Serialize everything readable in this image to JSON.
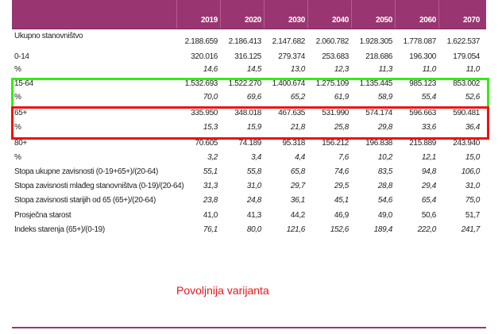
{
  "years": [
    "2019",
    "2020",
    "2030",
    "2040",
    "2050",
    "2060",
    "2070"
  ],
  "rows": [
    {
      "label": "Ukupno stanovništvo",
      "values": [
        "2.188.659",
        "2.186.413",
        "2.147.682",
        "2.060.782",
        "1.928.305",
        "1.778.087",
        "1.622.537"
      ]
    },
    {
      "label": "0-14",
      "values": [
        "320.016",
        "316.125",
        "279.374",
        "253.683",
        "218.686",
        "196.300",
        "179.054"
      ]
    },
    {
      "label": "%",
      "values": [
        "14,6",
        "14,5",
        "13,0",
        "12,3",
        "11,3",
        "11,0",
        "11,0"
      ]
    },
    {
      "label": "15-64",
      "values": [
        "1.532.693",
        "1.522.270",
        "1.400.674",
        "1.275.109",
        "1.135.445",
        "985.123",
        "853.002"
      ]
    },
    {
      "label": "%",
      "values": [
        "70,0",
        "69,6",
        "65,2",
        "61,9",
        "58,9",
        "55,4",
        "52,6"
      ]
    },
    {
      "label": "65+",
      "values": [
        "335.950",
        "348.018",
        "467.635",
        "531.990",
        "574.174",
        "596.663",
        "590.481"
      ]
    },
    {
      "label": "%",
      "values": [
        "15,3",
        "15,9",
        "21,8",
        "25,8",
        "29,8",
        "33,6",
        "36,4"
      ]
    },
    {
      "label": "80+",
      "values": [
        "70.605",
        "74.189",
        "95.318",
        "156.212",
        "196.838",
        "215.889",
        "243.940"
      ]
    },
    {
      "label": "%",
      "values": [
        "3,2",
        "3,4",
        "4,4",
        "7,6",
        "10,2",
        "12,1",
        "15,0"
      ]
    },
    {
      "label": "Stopa ukupne zavisnosti (0-19+65+)/(20-64)",
      "values": [
        "55,1",
        "55,8",
        "65,8",
        "74,6",
        "83,5",
        "94,8",
        "106,0"
      ]
    },
    {
      "label": "Stopa zavisnosti mlađeg stanovništva (0-19)/(20-64)",
      "values": [
        "31,3",
        "31,0",
        "29,7",
        "29,5",
        "28,8",
        "29,4",
        "31,0"
      ]
    },
    {
      "label": "Stopa zavisnosti starijih od 65 (65+)/(20-64)",
      "values": [
        "23,8",
        "24,8",
        "36,1",
        "45,1",
        "54,6",
        "65,4",
        "75,0"
      ]
    },
    {
      "label": "Prosječna starost",
      "values": [
        "41,0",
        "41,3",
        "44,2",
        "46,9",
        "49,0",
        "50,6",
        "51,7"
      ]
    },
    {
      "label": "Indeks starenja  (65+)/(0-19)",
      "values": [
        "76,1",
        "80,0",
        "121,6",
        "152,6",
        "189,4",
        "222,0",
        "241,7"
      ]
    }
  ],
  "note": "Povoljnija varijanta",
  "colors": {
    "header": "#993671",
    "green": "#33ee11",
    "red": "#ee1111",
    "note": "#e8141c"
  }
}
